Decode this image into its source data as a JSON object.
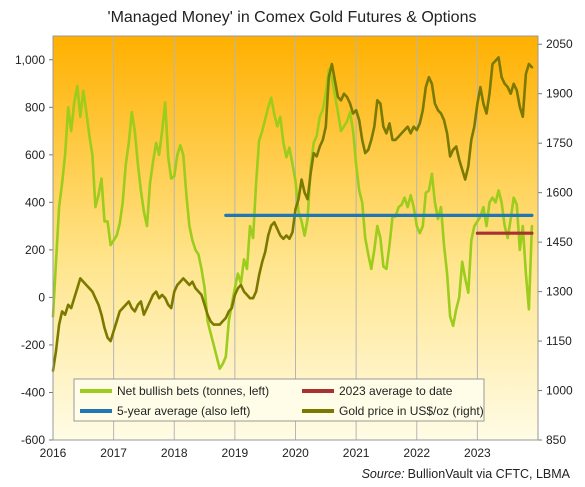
{
  "chart_data": {
    "type": "line",
    "title": "'Managed Money' in Comex Gold Futures & Options",
    "source": {
      "prefix": "Source:",
      "text": "BullionVault via CFTC, LBMA"
    },
    "x_axis": {
      "range": [
        2016,
        2024
      ],
      "ticks": [
        "2016",
        "2017",
        "2018",
        "2019",
        "2020",
        "2021",
        "2022",
        "2023"
      ]
    },
    "y_left": {
      "range": [
        -600,
        1100
      ],
      "ticks": [
        -600,
        -400,
        -200,
        0,
        200,
        400,
        600,
        800,
        "1,000"
      ]
    },
    "y_right": {
      "range": [
        850,
        2075
      ],
      "ticks": [
        850,
        1000,
        1150,
        1300,
        1450,
        1600,
        1750,
        1900,
        2050
      ]
    },
    "grid": "vertical-year",
    "legend_position": "bottom",
    "colors": {
      "net_bets": "#9ccc1c",
      "gold": "#7a7a00",
      "avg5": "#1f78b4",
      "avg2023": "#a83232",
      "bg_top": "#ffb000",
      "bg_bottom": "#fffce6"
    },
    "series": [
      {
        "name": "Net bullish bets (tonnes, left)",
        "axis": "left",
        "x": [
          2016.0,
          2016.05,
          2016.1,
          2016.15,
          2016.2,
          2016.25,
          2016.3,
          2016.35,
          2016.4,
          2016.45,
          2016.5,
          2016.55,
          2016.6,
          2016.65,
          2016.7,
          2016.75,
          2016.8,
          2016.85,
          2016.9,
          2016.95,
          2017.0,
          2017.05,
          2017.1,
          2017.15,
          2017.2,
          2017.25,
          2017.3,
          2017.35,
          2017.4,
          2017.45,
          2017.5,
          2017.55,
          2017.6,
          2017.65,
          2017.7,
          2017.75,
          2017.8,
          2017.85,
          2017.9,
          2017.95,
          2018.0,
          2018.05,
          2018.1,
          2018.15,
          2018.2,
          2018.25,
          2018.3,
          2018.35,
          2018.4,
          2018.45,
          2018.5,
          2018.55,
          2018.6,
          2018.65,
          2018.7,
          2018.75,
          2018.8,
          2018.85,
          2018.9,
          2018.95,
          2019.0,
          2019.05,
          2019.1,
          2019.15,
          2019.2,
          2019.25,
          2019.3,
          2019.35,
          2019.4,
          2019.45,
          2019.5,
          2019.55,
          2019.6,
          2019.65,
          2019.7,
          2019.75,
          2019.8,
          2019.85,
          2019.9,
          2019.95,
          2020.0,
          2020.05,
          2020.1,
          2020.15,
          2020.2,
          2020.25,
          2020.3,
          2020.35,
          2020.4,
          2020.45,
          2020.5,
          2020.55,
          2020.6,
          2020.65,
          2020.7,
          2020.75,
          2020.8,
          2020.85,
          2020.9,
          2020.95,
          2021.0,
          2021.05,
          2021.1,
          2021.15,
          2021.2,
          2021.25,
          2021.3,
          2021.35,
          2021.4,
          2021.45,
          2021.5,
          2021.55,
          2021.6,
          2021.65,
          2021.7,
          2021.75,
          2021.8,
          2021.85,
          2021.9,
          2021.95,
          2022.0,
          2022.05,
          2022.1,
          2022.15,
          2022.2,
          2022.25,
          2022.3,
          2022.35,
          2022.4,
          2022.45,
          2022.5,
          2022.55,
          2022.6,
          2022.65,
          2022.7,
          2022.75,
          2022.8,
          2022.85,
          2022.9,
          2022.95,
          2023.0,
          2023.05,
          2023.1,
          2023.15,
          2023.2,
          2023.25,
          2023.3,
          2023.35,
          2023.4,
          2023.45,
          2023.5,
          2023.55,
          2023.6,
          2023.65,
          2023.7,
          2023.75,
          2023.8,
          2023.85,
          2023.9
        ],
        "values": [
          -80,
          150,
          380,
          480,
          600,
          800,
          700,
          820,
          890,
          760,
          870,
          780,
          680,
          600,
          380,
          430,
          500,
          320,
          320,
          220,
          240,
          260,
          310,
          400,
          560,
          650,
          780,
          700,
          560,
          450,
          360,
          300,
          480,
          570,
          650,
          600,
          700,
          820,
          590,
          500,
          510,
          600,
          640,
          600,
          430,
          300,
          240,
          200,
          180,
          120,
          40,
          -100,
          -150,
          -200,
          -250,
          -300,
          -280,
          -250,
          -100,
          -30,
          40,
          100,
          60,
          160,
          120,
          300,
          250,
          480,
          660,
          700,
          750,
          800,
          840,
          770,
          720,
          760,
          650,
          590,
          630,
          560,
          490,
          360,
          320,
          260,
          330,
          550,
          650,
          680,
          760,
          790,
          860,
          960,
          920,
          850,
          780,
          700,
          720,
          740,
          780,
          700,
          560,
          450,
          400,
          250,
          180,
          120,
          200,
          300,
          250,
          130,
          120,
          220,
          340,
          340,
          380,
          390,
          420,
          380,
          430,
          380,
          300,
          270,
          300,
          440,
          450,
          520,
          400,
          330,
          380,
          220,
          100,
          -80,
          -120,
          -50,
          0,
          150,
          80,
          20,
          240,
          300,
          320,
          340,
          380,
          300,
          400,
          420,
          400,
          450,
          400,
          300,
          250,
          330,
          420,
          390,
          200,
          300,
          100,
          -50,
          300
        ]
      },
      {
        "name": "Gold price in US$/oz (right)",
        "axis": "right",
        "x": [
          2016.0,
          2016.05,
          2016.1,
          2016.15,
          2016.2,
          2016.25,
          2016.3,
          2016.35,
          2016.4,
          2016.45,
          2016.5,
          2016.55,
          2016.6,
          2016.65,
          2016.7,
          2016.75,
          2016.8,
          2016.85,
          2016.9,
          2016.95,
          2017.0,
          2017.05,
          2017.1,
          2017.15,
          2017.2,
          2017.25,
          2017.3,
          2017.35,
          2017.4,
          2017.45,
          2017.5,
          2017.55,
          2017.6,
          2017.65,
          2017.7,
          2017.75,
          2017.8,
          2017.85,
          2017.9,
          2017.95,
          2018.0,
          2018.05,
          2018.1,
          2018.15,
          2018.2,
          2018.25,
          2018.3,
          2018.35,
          2018.4,
          2018.45,
          2018.5,
          2018.55,
          2018.6,
          2018.65,
          2018.7,
          2018.75,
          2018.8,
          2018.85,
          2018.9,
          2018.95,
          2019.0,
          2019.05,
          2019.1,
          2019.15,
          2019.2,
          2019.25,
          2019.3,
          2019.35,
          2019.4,
          2019.45,
          2019.5,
          2019.55,
          2019.6,
          2019.65,
          2019.7,
          2019.75,
          2019.8,
          2019.85,
          2019.9,
          2019.95,
          2020.0,
          2020.05,
          2020.1,
          2020.15,
          2020.2,
          2020.25,
          2020.3,
          2020.35,
          2020.4,
          2020.45,
          2020.5,
          2020.55,
          2020.6,
          2020.65,
          2020.7,
          2020.75,
          2020.8,
          2020.85,
          2020.9,
          2020.95,
          2021.0,
          2021.05,
          2021.1,
          2021.15,
          2021.2,
          2021.25,
          2021.3,
          2021.35,
          2021.4,
          2021.45,
          2021.5,
          2021.55,
          2021.6,
          2021.65,
          2021.7,
          2021.75,
          2021.8,
          2021.85,
          2021.9,
          2021.95,
          2022.0,
          2022.05,
          2022.1,
          2022.15,
          2022.2,
          2022.25,
          2022.3,
          2022.35,
          2022.4,
          2022.45,
          2022.5,
          2022.55,
          2022.6,
          2022.65,
          2022.7,
          2022.75,
          2022.8,
          2022.85,
          2022.9,
          2022.95,
          2023.0,
          2023.05,
          2023.1,
          2023.15,
          2023.2,
          2023.25,
          2023.3,
          2023.35,
          2023.4,
          2023.45,
          2023.5,
          2023.55,
          2023.6,
          2023.65,
          2023.7,
          2023.75,
          2023.8,
          2023.85,
          2023.9
        ],
        "values": [
          1060,
          1120,
          1200,
          1240,
          1230,
          1260,
          1250,
          1280,
          1310,
          1340,
          1330,
          1320,
          1310,
          1300,
          1280,
          1260,
          1230,
          1190,
          1160,
          1150,
          1180,
          1210,
          1240,
          1250,
          1260,
          1270,
          1250,
          1240,
          1260,
          1270,
          1230,
          1250,
          1270,
          1290,
          1300,
          1280,
          1290,
          1280,
          1260,
          1250,
          1300,
          1320,
          1330,
          1340,
          1330,
          1320,
          1330,
          1310,
          1300,
          1290,
          1260,
          1230,
          1210,
          1200,
          1200,
          1200,
          1210,
          1220,
          1240,
          1250,
          1290,
          1310,
          1320,
          1300,
          1290,
          1280,
          1280,
          1300,
          1350,
          1390,
          1420,
          1470,
          1500,
          1510,
          1490,
          1470,
          1460,
          1470,
          1460,
          1480,
          1550,
          1580,
          1640,
          1600,
          1580,
          1660,
          1720,
          1710,
          1740,
          1760,
          1800,
          1950,
          1990,
          1940,
          1890,
          1880,
          1900,
          1890,
          1870,
          1840,
          1850,
          1820,
          1760,
          1720,
          1730,
          1760,
          1800,
          1880,
          1870,
          1800,
          1780,
          1810,
          1760,
          1760,
          1770,
          1780,
          1790,
          1800,
          1780,
          1800,
          1790,
          1810,
          1850,
          1920,
          1950,
          1930,
          1870,
          1850,
          1840,
          1820,
          1780,
          1710,
          1730,
          1740,
          1700,
          1670,
          1640,
          1680,
          1760,
          1800,
          1870,
          1920,
          1870,
          1840,
          1900,
          1990,
          2000,
          2010,
          1950,
          1930,
          1920,
          1900,
          1930,
          1910,
          1860,
          1830,
          1960,
          1990,
          1980
        ]
      },
      {
        "name": "5-year average (also left)",
        "axis": "left",
        "x": [
          2018.85,
          2023.9
        ],
        "values": [
          345,
          345
        ]
      },
      {
        "name": "2023 average to date",
        "axis": "left",
        "x": [
          2023.0,
          2023.9
        ],
        "values": [
          270,
          270
        ]
      }
    ]
  }
}
